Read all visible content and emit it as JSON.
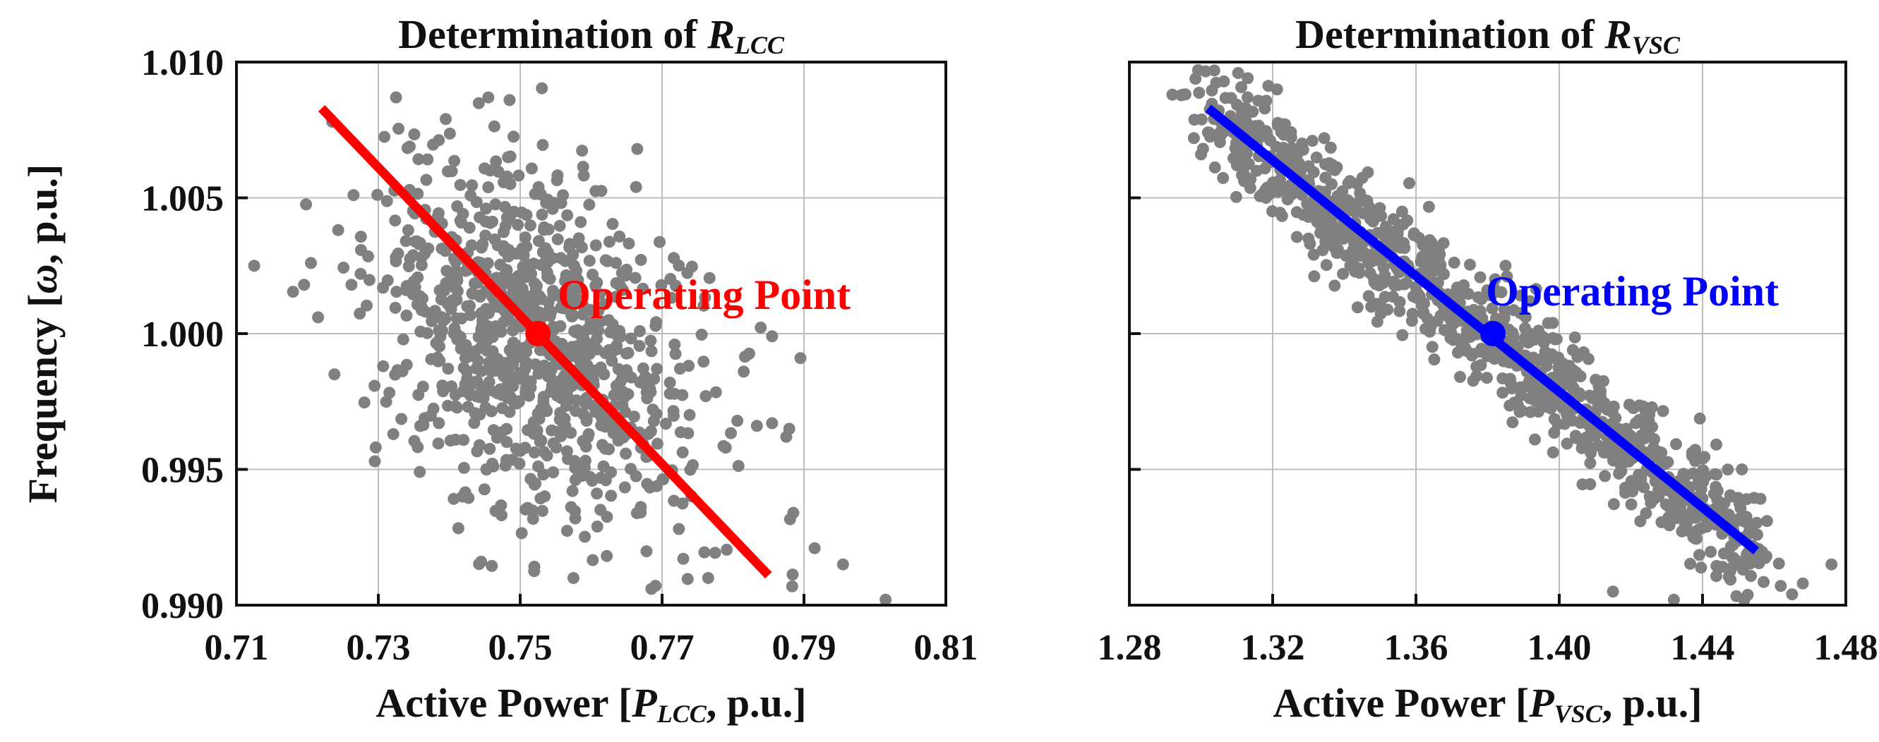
{
  "chart_data": [
    {
      "id": "lcc",
      "type": "scatter",
      "title": "Determination of ",
      "title_symbol": "R",
      "title_subscript": "LCC",
      "xlabel_prefix": "Active Power [",
      "xlabel_symbol": "P",
      "xlabel_subscript": "LCC",
      "xlabel_suffix": ", p.u.]",
      "ylabel_prefix": "Frequency [",
      "ylabel_symbol": "ω",
      "ylabel_suffix": ", p.u.]",
      "xlim": [
        0.71,
        0.81
      ],
      "ylim": [
        0.99,
        1.01
      ],
      "xticks": [
        0.71,
        0.73,
        0.75,
        0.77,
        0.79,
        0.81
      ],
      "xtick_labels": [
        "0.71",
        "0.73",
        "0.75",
        "0.77",
        "0.79",
        "0.81"
      ],
      "yticks": [
        0.99,
        0.995,
        1.0,
        1.005,
        1.01
      ],
      "ytick_labels": [
        "0.990",
        "0.995",
        "1.000",
        "1.005",
        "1.010"
      ],
      "show_ytick_labels": true,
      "grid": true,
      "line": {
        "x": [
          0.722,
          0.785
        ],
        "y": [
          1.0083,
          0.9911
        ],
        "color": "#ff0000"
      },
      "operating_point": {
        "x": 0.7525,
        "y": 1.0,
        "label": "Operating Point",
        "color": "#ff0000"
      },
      "cloud": {
        "cx": 0.7525,
        "cy": 0.9995,
        "sx": 0.0115,
        "sy": 0.0034,
        "rho": -0.38,
        "n": 900,
        "seed": 7
      },
      "extra_points": [
        [
          0.7125,
          1.0025
        ],
        [
          0.7205,
          1.0026
        ],
        [
          0.7215,
          1.0006
        ],
        [
          0.7235,
          1.0078
        ],
        [
          0.7265,
          1.0051
        ],
        [
          0.7275,
          1.0022
        ],
        [
          0.7325,
          1.0087
        ],
        [
          0.7395,
          1.0079
        ],
        [
          0.7455,
          1.0087
        ],
        [
          0.7485,
          1.0086
        ],
        [
          0.7665,
          1.0068
        ],
        [
          0.7295,
          0.9953
        ],
        [
          0.7855,
          0.9967
        ],
        [
          0.7875,
          0.9962
        ],
        [
          0.7895,
          0.9991
        ],
        [
          0.7915,
          0.9921
        ],
        [
          0.7955,
          0.9915
        ],
        [
          0.8015,
          0.9902
        ],
        [
          0.7885,
          0.9934
        ],
        [
          0.7765,
          0.991
        ],
        [
          0.7685,
          0.9906
        ],
        [
          0.7575,
          0.991
        ],
        [
          0.7445,
          0.9916
        ],
        [
          0.7855,
          0.9999
        ],
        [
          0.7815,
          0.9986
        ]
      ]
    },
    {
      "id": "vsc",
      "type": "scatter",
      "title": "Determination of ",
      "title_symbol": "R",
      "title_subscript": "VSC",
      "xlabel_prefix": "Active Power [",
      "xlabel_symbol": "P",
      "xlabel_subscript": "VSC",
      "xlabel_suffix": ", p.u.]",
      "xlim": [
        1.28,
        1.48
      ],
      "ylim": [
        0.99,
        1.01
      ],
      "xticks": [
        1.28,
        1.32,
        1.36,
        1.4,
        1.44,
        1.48
      ],
      "xtick_labels": [
        "1.28",
        "1.32",
        "1.36",
        "1.40",
        "1.44",
        "1.48"
      ],
      "yticks": [
        0.99,
        0.995,
        1.0,
        1.005,
        1.01
      ],
      "show_ytick_labels": false,
      "grid": true,
      "line": {
        "x": [
          1.302,
          1.455
        ],
        "y": [
          1.0083,
          0.992
        ],
        "color": "#0000ff"
      },
      "operating_point": {
        "x": 1.3815,
        "y": 1.0,
        "label": "Operating Point",
        "color": "#0000ff"
      },
      "band": {
        "x0": 1.302,
        "y0": 1.0083,
        "x1": 1.455,
        "y1": 0.992,
        "sd": 0.0011,
        "n": 1000,
        "seed": 11
      },
      "extra_points": [
        [
          1.292,
          1.0088
        ],
        [
          1.295,
          1.0088
        ],
        [
          1.298,
          1.0072
        ],
        [
          1.313,
          1.0087
        ],
        [
          1.31,
          1.0062
        ],
        [
          1.385,
          1.0025
        ],
        [
          1.35,
          1.0011
        ],
        [
          1.465,
          0.9904
        ],
        [
          1.468,
          0.9908
        ],
        [
          1.476,
          0.9915
        ],
        [
          1.455,
          0.9921
        ],
        [
          1.446,
          0.9919
        ],
        [
          1.432,
          0.9902
        ],
        [
          1.415,
          0.9905
        ],
        [
          1.44,
          0.9946
        ],
        [
          1.451,
          0.995
        ],
        [
          1.458,
          0.9931
        ],
        [
          1.448,
          0.994
        ],
        [
          1.425,
          0.9968
        ],
        [
          1.33,
          1.0035
        ],
        [
          1.3,
          1.0066
        ]
      ]
    }
  ]
}
